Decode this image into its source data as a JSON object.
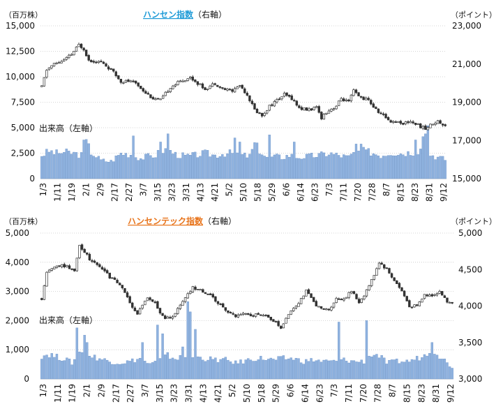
{
  "chart_data": [
    {
      "type": "candlestick+bar",
      "title": "ハンセン指数",
      "title_suffix": "（右軸）",
      "title_color": "#1f9bd7",
      "left_unit": "（百万株）",
      "right_unit": "（ポイント）",
      "volume_label": "出来高（左軸）",
      "left_axis": {
        "ylim": [
          0,
          15000
        ],
        "ticks": [
          "0",
          "2,500",
          "5,000",
          "7,500",
          "10,000",
          "12,500",
          "15,000"
        ]
      },
      "right_axis": {
        "ylim": [
          15000,
          23000
        ],
        "ticks": [
          "15,000",
          "17,000",
          "19,000",
          "21,000",
          "23,000"
        ]
      },
      "x_labels": [
        "1/3",
        "1/11",
        "1/19",
        "2/1",
        "2/9",
        "2/17",
        "2/27",
        "3/7",
        "3/15",
        "3/23",
        "3/31",
        "4/13",
        "4/21",
        "5/2",
        "5/10",
        "5/18",
        "5/29",
        "6/6",
        "6/14",
        "6/23",
        "7/3",
        "7/11",
        "7/20",
        "7/28",
        "8/7",
        "8/15",
        "8/23",
        "8/31",
        "9/12"
      ],
      "grid": true,
      "price_anchors": [
        [
          0,
          19800
        ],
        [
          2,
          20700
        ],
        [
          5,
          21000
        ],
        [
          9,
          21200
        ],
        [
          12,
          21500
        ],
        [
          15,
          22000
        ],
        [
          17,
          21800
        ],
        [
          19,
          21200
        ],
        [
          24,
          21100
        ],
        [
          28,
          20700
        ],
        [
          32,
          20100
        ],
        [
          35,
          20100
        ],
        [
          38,
          20000
        ],
        [
          42,
          19500
        ],
        [
          45,
          19200
        ],
        [
          48,
          19100
        ],
        [
          52,
          19800
        ],
        [
          56,
          20100
        ],
        [
          60,
          20300
        ],
        [
          64,
          19900
        ],
        [
          66,
          19700
        ],
        [
          70,
          20000
        ],
        [
          73,
          19700
        ],
        [
          77,
          19600
        ],
        [
          80,
          19900
        ],
        [
          83,
          19400
        ],
        [
          86,
          18600
        ],
        [
          89,
          18300
        ],
        [
          92,
          18800
        ],
        [
          95,
          19100
        ],
        [
          98,
          19400
        ],
        [
          101,
          19200
        ],
        [
          104,
          18700
        ],
        [
          107,
          18600
        ],
        [
          111,
          18700
        ],
        [
          113,
          18200
        ],
        [
          115,
          18500
        ],
        [
          119,
          18800
        ],
        [
          121,
          19200
        ],
        [
          124,
          19000
        ],
        [
          126,
          19600
        ],
        [
          128,
          19300
        ],
        [
          132,
          19100
        ],
        [
          135,
          18600
        ],
        [
          138,
          18300
        ],
        [
          141,
          18000
        ],
        [
          143,
          18000
        ],
        [
          146,
          17900
        ],
        [
          149,
          18000
        ],
        [
          152,
          17800
        ],
        [
          155,
          17600
        ],
        [
          158,
          17900
        ],
        [
          160,
          18000
        ],
        [
          163,
          17800
        ]
      ],
      "volume_anchors": [
        [
          0,
          2300
        ],
        [
          3,
          2700
        ],
        [
          6,
          2500
        ],
        [
          9,
          2600
        ],
        [
          13,
          2500
        ],
        [
          16,
          2300
        ],
        [
          18,
          3600
        ],
        [
          20,
          2600
        ],
        [
          24,
          1800
        ],
        [
          28,
          1700
        ],
        [
          32,
          2500
        ],
        [
          36,
          2400
        ],
        [
          40,
          2000
        ],
        [
          43,
          2200
        ],
        [
          46,
          2300
        ],
        [
          48,
          2700
        ],
        [
          51,
          2900
        ],
        [
          54,
          2400
        ],
        [
          58,
          2200
        ],
        [
          62,
          2300
        ],
        [
          66,
          2500
        ],
        [
          70,
          2300
        ],
        [
          74,
          2500
        ],
        [
          78,
          2500
        ],
        [
          81,
          2300
        ],
        [
          84,
          2200
        ],
        [
          86,
          3400
        ],
        [
          88,
          2800
        ],
        [
          91,
          2000
        ],
        [
          94,
          2200
        ],
        [
          97,
          2100
        ],
        [
          100,
          2300
        ],
        [
          104,
          2100
        ],
        [
          108,
          2200
        ],
        [
          112,
          2300
        ],
        [
          116,
          2500
        ],
        [
          120,
          2300
        ],
        [
          124,
          2100
        ],
        [
          127,
          2700
        ],
        [
          130,
          2700
        ],
        [
          133,
          2600
        ],
        [
          137,
          2300
        ],
        [
          141,
          2600
        ],
        [
          145,
          2500
        ],
        [
          149,
          2600
        ],
        [
          152,
          2700
        ],
        [
          154,
          4100
        ],
        [
          156,
          2500
        ],
        [
          160,
          2100
        ],
        [
          163,
          1900
        ]
      ],
      "volume_spikes": [
        [
          17,
          3800
        ],
        [
          37,
          4200
        ],
        [
          48,
          3600
        ],
        [
          51,
          4400
        ],
        [
          78,
          4000
        ],
        [
          80,
          3600
        ],
        [
          92,
          4300
        ],
        [
          102,
          3600
        ],
        [
          127,
          3400
        ],
        [
          129,
          3400
        ],
        [
          151,
          3800
        ],
        [
          155,
          4400
        ],
        [
          156,
          5200
        ]
      ],
      "n_days": 164
    },
    {
      "type": "candlestick+bar",
      "title": "ハンセンテック指数",
      "title_suffix": "（右軸）",
      "title_color": "#e8741b",
      "left_unit": "（百万株）",
      "right_unit": "（ポイント）",
      "volume_label": "出来高（左軸）",
      "left_axis": {
        "ylim": [
          0,
          5000
        ],
        "ticks": [
          "0",
          "1,000",
          "2,000",
          "3,000",
          "4,000",
          "5,000"
        ]
      },
      "right_axis": {
        "ylim": [
          3000,
          5000
        ],
        "ticks": [
          "3,000",
          "3,500",
          "4,000",
          "4,500",
          "5,000"
        ]
      },
      "x_labels": [
        "1/3",
        "1/11",
        "1/19",
        "2/1",
        "2/9",
        "2/17",
        "2/27",
        "3/7",
        "3/15",
        "3/23",
        "3/31",
        "4/13",
        "4/21",
        "5/2",
        "5/10",
        "5/18",
        "5/29",
        "6/6",
        "6/14",
        "6/23",
        "7/3",
        "7/11",
        "7/20",
        "7/28",
        "8/7",
        "8/15",
        "8/23",
        "8/31",
        "9/12"
      ],
      "grid": true,
      "price_anchors": [
        [
          0,
          4100
        ],
        [
          2,
          4450
        ],
        [
          5,
          4550
        ],
        [
          9,
          4550
        ],
        [
          13,
          4500
        ],
        [
          15,
          4830
        ],
        [
          17,
          4750
        ],
        [
          19,
          4650
        ],
        [
          23,
          4550
        ],
        [
          27,
          4400
        ],
        [
          31,
          4300
        ],
        [
          35,
          4050
        ],
        [
          38,
          3900
        ],
        [
          42,
          4100
        ],
        [
          45,
          4050
        ],
        [
          48,
          3850
        ],
        [
          51,
          3830
        ],
        [
          54,
          3950
        ],
        [
          57,
          4100
        ],
        [
          60,
          4250
        ],
        [
          64,
          4200
        ],
        [
          67,
          4150
        ],
        [
          70,
          4050
        ],
        [
          73,
          3950
        ],
        [
          77,
          3850
        ],
        [
          80,
          3900
        ],
        [
          83,
          3850
        ],
        [
          86,
          3900
        ],
        [
          89,
          3850
        ],
        [
          92,
          3800
        ],
        [
          95,
          3700
        ],
        [
          98,
          3900
        ],
        [
          102,
          4050
        ],
        [
          105,
          4200
        ],
        [
          108,
          4050
        ],
        [
          111,
          3950
        ],
        [
          114,
          3950
        ],
        [
          117,
          4100
        ],
        [
          120,
          4100
        ],
        [
          123,
          4200
        ],
        [
          126,
          4050
        ],
        [
          128,
          4150
        ],
        [
          131,
          4350
        ],
        [
          134,
          4600
        ],
        [
          137,
          4500
        ],
        [
          140,
          4350
        ],
        [
          143,
          4200
        ],
        [
          146,
          4000
        ],
        [
          149,
          4000
        ],
        [
          152,
          4150
        ],
        [
          155,
          4150
        ],
        [
          158,
          4200
        ],
        [
          161,
          4050
        ],
        [
          163,
          4050
        ]
      ],
      "volume_anchors": [
        [
          0,
          800
        ],
        [
          3,
          850
        ],
        [
          6,
          750
        ],
        [
          9,
          700
        ],
        [
          12,
          550
        ],
        [
          15,
          900
        ],
        [
          17,
          1100
        ],
        [
          19,
          800
        ],
        [
          23,
          700
        ],
        [
          27,
          600
        ],
        [
          31,
          550
        ],
        [
          35,
          600
        ],
        [
          39,
          700
        ],
        [
          43,
          500
        ],
        [
          46,
          600
        ],
        [
          50,
          800
        ],
        [
          53,
          700
        ],
        [
          57,
          750
        ],
        [
          61,
          750
        ],
        [
          65,
          700
        ],
        [
          69,
          650
        ],
        [
          73,
          650
        ],
        [
          77,
          550
        ],
        [
          80,
          600
        ],
        [
          84,
          700
        ],
        [
          88,
          700
        ],
        [
          92,
          650
        ],
        [
          96,
          700
        ],
        [
          100,
          700
        ],
        [
          104,
          600
        ],
        [
          108,
          650
        ],
        [
          112,
          600
        ],
        [
          116,
          600
        ],
        [
          120,
          650
        ],
        [
          124,
          600
        ],
        [
          128,
          600
        ],
        [
          131,
          850
        ],
        [
          134,
          800
        ],
        [
          137,
          550
        ],
        [
          141,
          600
        ],
        [
          145,
          600
        ],
        [
          149,
          700
        ],
        [
          152,
          800
        ],
        [
          155,
          1100
        ],
        [
          158,
          800
        ],
        [
          161,
          550
        ],
        [
          163,
          400
        ]
      ],
      "volume_spikes": [
        [
          14,
          1750
        ],
        [
          17,
          1500
        ],
        [
          18,
          1250
        ],
        [
          40,
          1250
        ],
        [
          46,
          1850
        ],
        [
          48,
          1550
        ],
        [
          56,
          1100
        ],
        [
          58,
          2650
        ],
        [
          59,
          2300
        ],
        [
          61,
          1700
        ],
        [
          118,
          1950
        ],
        [
          129,
          2000
        ],
        [
          155,
          1250
        ]
      ],
      "n_days": 164
    }
  ]
}
